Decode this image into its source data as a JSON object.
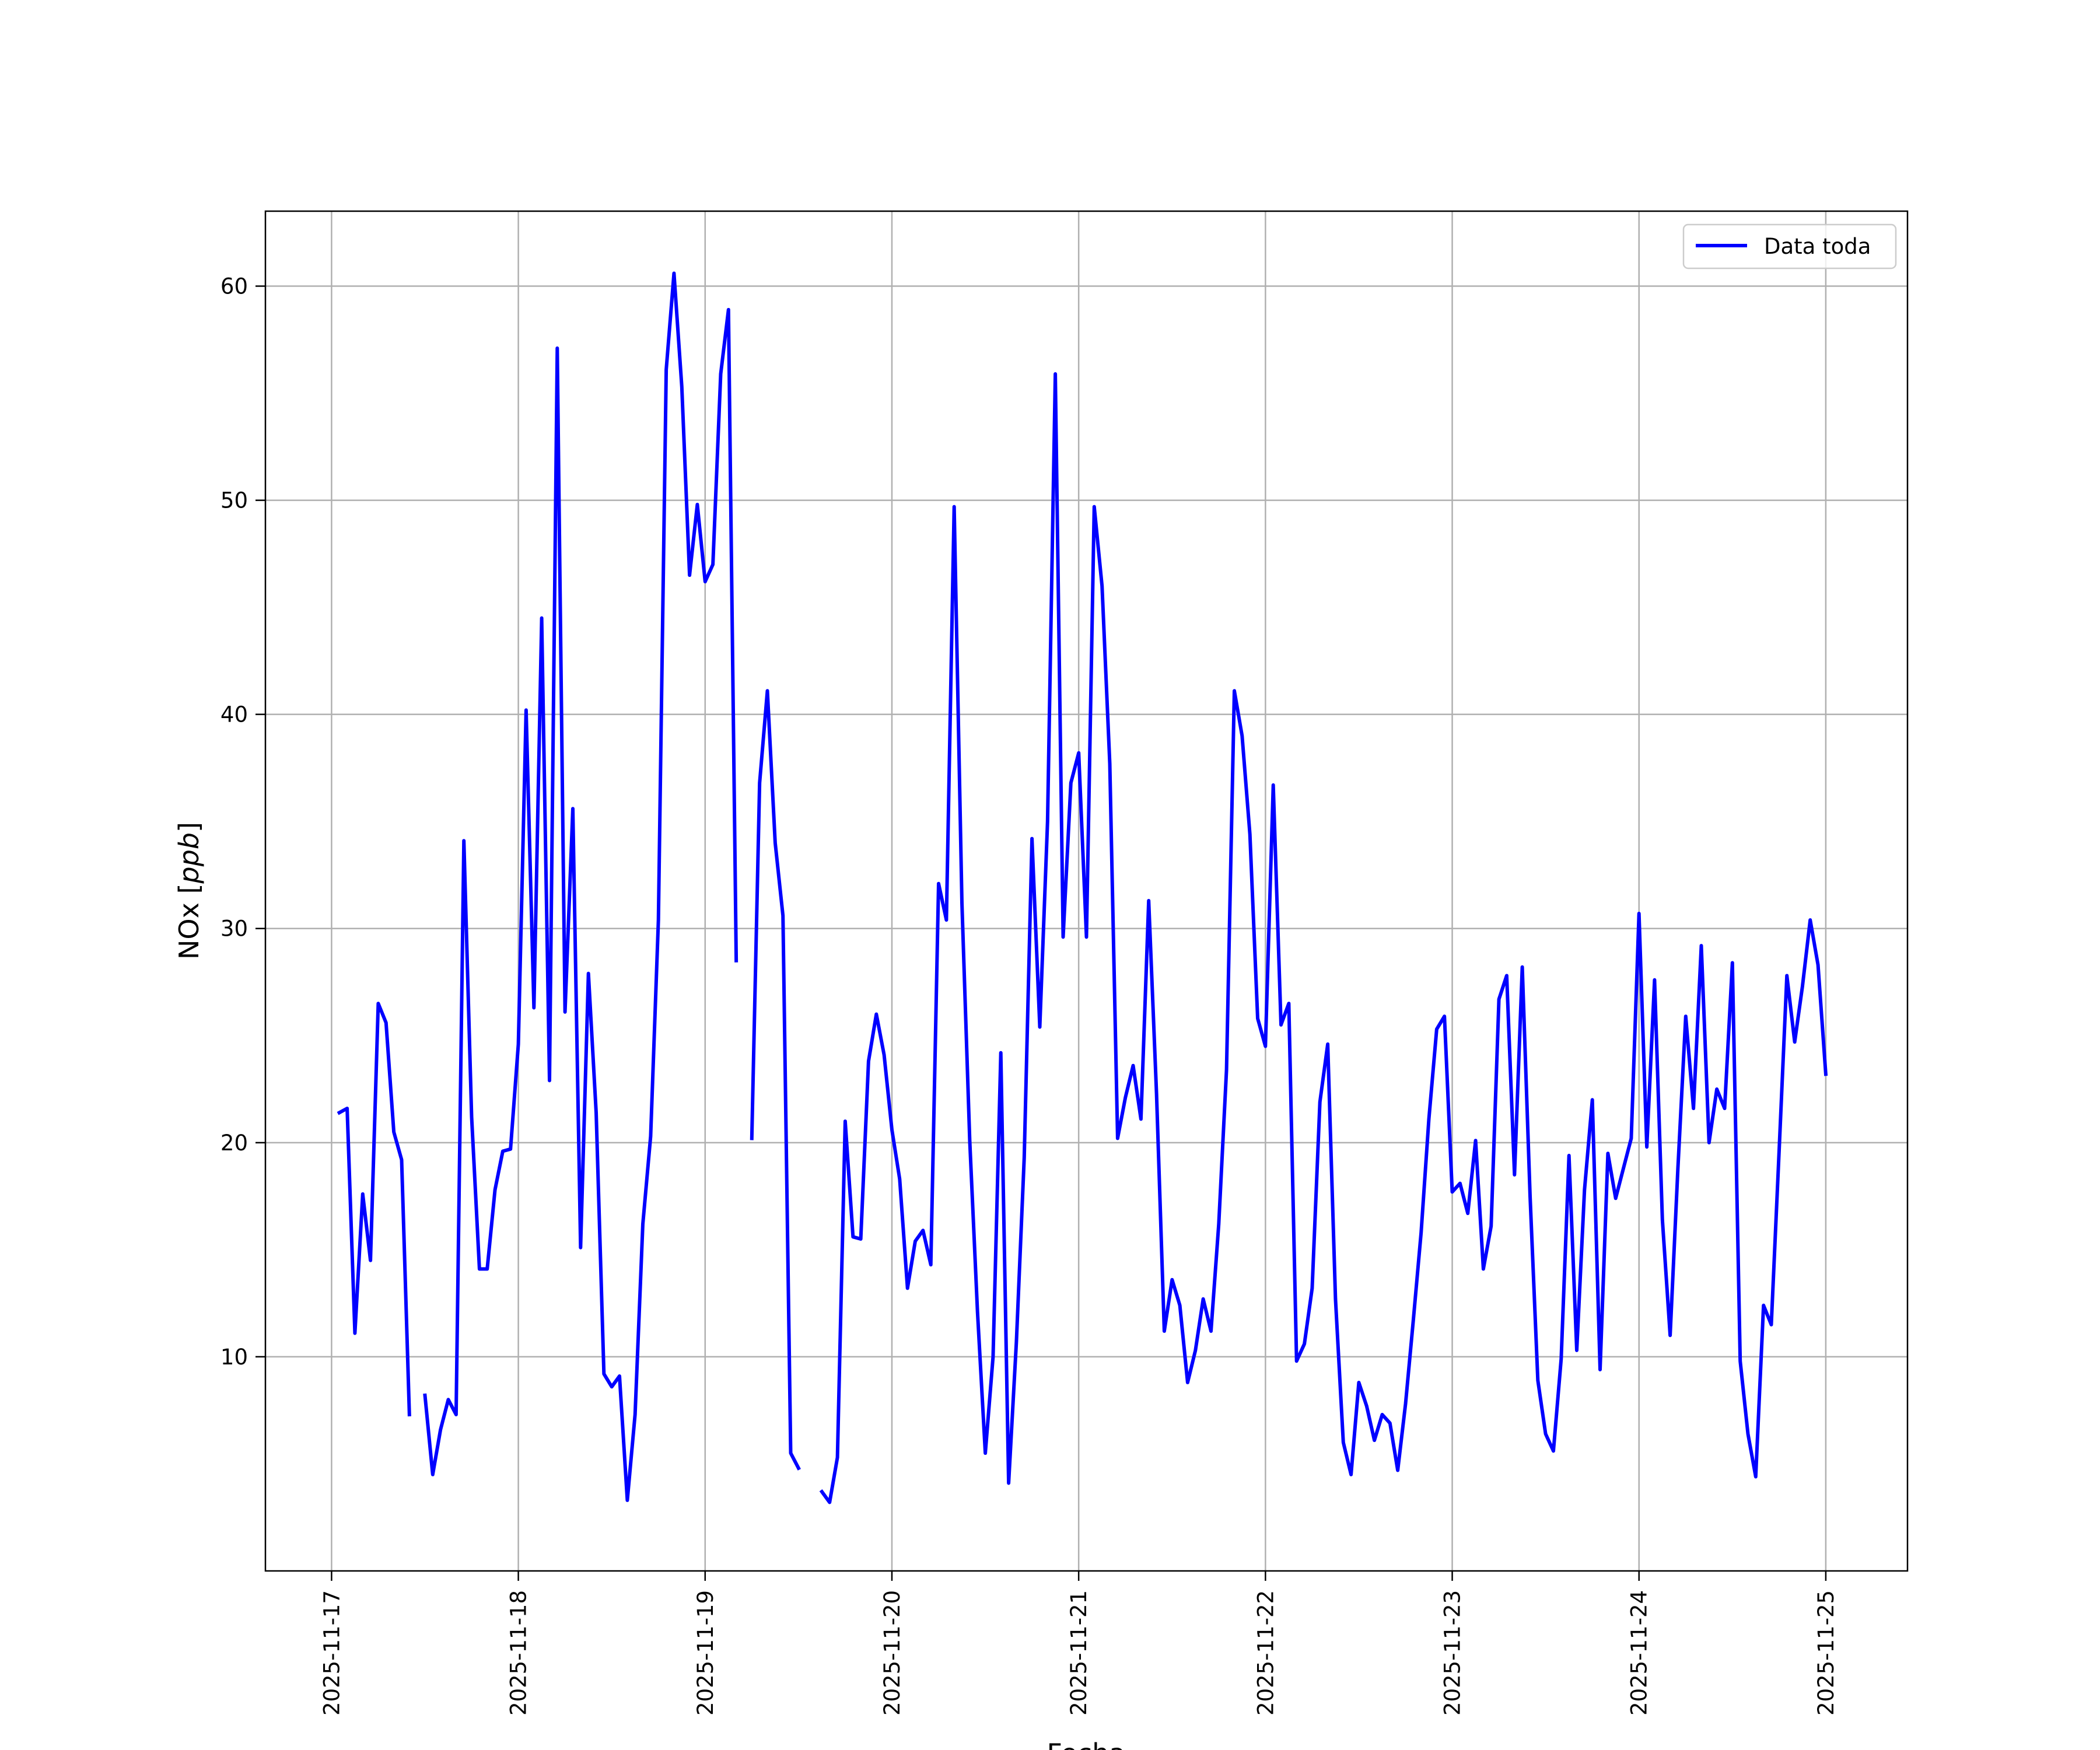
{
  "chart_data": {
    "type": "line",
    "xlabel": "Fecha",
    "ylabel": "NOx [ppb]",
    "ylabel_main": "NOx ",
    "ylabel_units": "ppb",
    "xlim": [
      "2025-11-16 15:30",
      "2025-11-25 10:30"
    ],
    "ylim": [
      0.0,
      63.5
    ],
    "grid": true,
    "legend": "top-right",
    "x_ticks": [
      "2025-11-17",
      "2025-11-18",
      "2025-11-19",
      "2025-11-20",
      "2025-11-21",
      "2025-11-22",
      "2025-11-23",
      "2025-11-24",
      "2025-11-25"
    ],
    "y_ticks": [
      10,
      20,
      30,
      40,
      50,
      60
    ],
    "series": [
      {
        "name": "Data toda",
        "color": "#0000ff",
        "segments": [
          [
            [
              "2025-11-17 01:00",
              21.4
            ],
            [
              "2025-11-17 02:00",
              21.6
            ],
            [
              "2025-11-17 03:00",
              11.1
            ],
            [
              "2025-11-17 04:00",
              17.6
            ],
            [
              "2025-11-17 05:00",
              14.5
            ],
            [
              "2025-11-17 06:00",
              26.5
            ],
            [
              "2025-11-17 07:00",
              25.6
            ],
            [
              "2025-11-17 08:00",
              20.5
            ],
            [
              "2025-11-17 09:00",
              19.2
            ],
            [
              "2025-11-17 10:00",
              7.3
            ]
          ],
          [
            [
              "2025-11-17 12:00",
              8.2
            ],
            [
              "2025-11-17 13:00",
              4.5
            ],
            [
              "2025-11-17 14:00",
              6.6
            ],
            [
              "2025-11-17 15:00",
              8.0
            ],
            [
              "2025-11-17 16:00",
              7.3
            ],
            [
              "2025-11-17 17:00",
              34.1
            ],
            [
              "2025-11-17 18:00",
              21.2
            ],
            [
              "2025-11-17 19:00",
              14.1
            ],
            [
              "2025-11-17 20:00",
              14.1
            ],
            [
              "2025-11-17 21:00",
              17.8
            ],
            [
              "2025-11-17 22:00",
              19.6
            ],
            [
              "2025-11-17 23:00",
              19.7
            ],
            [
              "2025-11-18 00:00",
              24.6
            ],
            [
              "2025-11-18 01:00",
              40.2
            ],
            [
              "2025-11-18 02:00",
              26.3
            ],
            [
              "2025-11-18 03:00",
              44.5
            ],
            [
              "2025-11-18 04:00",
              22.9
            ],
            [
              "2025-11-18 05:00",
              57.1
            ],
            [
              "2025-11-18 06:00",
              26.1
            ],
            [
              "2025-11-18 07:00",
              35.6
            ],
            [
              "2025-11-18 08:00",
              15.1
            ],
            [
              "2025-11-18 09:00",
              27.9
            ],
            [
              "2025-11-18 10:00",
              21.4
            ],
            [
              "2025-11-18 11:00",
              9.2
            ],
            [
              "2025-11-18 12:00",
              8.6
            ],
            [
              "2025-11-18 13:00",
              9.1
            ],
            [
              "2025-11-18 14:00",
              3.3
            ],
            [
              "2025-11-18 15:00",
              7.3
            ],
            [
              "2025-11-18 16:00",
              16.2
            ],
            [
              "2025-11-18 17:00",
              20.3
            ],
            [
              "2025-11-18 18:00",
              30.4
            ],
            [
              "2025-11-18 19:00",
              56.1
            ],
            [
              "2025-11-18 20:00",
              60.6
            ],
            [
              "2025-11-18 21:00",
              55.3
            ],
            [
              "2025-11-18 22:00",
              46.5
            ],
            [
              "2025-11-18 23:00",
              49.8
            ],
            [
              "2025-11-19 00:00",
              46.2
            ],
            [
              "2025-11-19 01:00",
              47.0
            ],
            [
              "2025-11-19 02:00",
              55.9
            ],
            [
              "2025-11-19 03:00",
              58.9
            ],
            [
              "2025-11-19 04:00",
              28.5
            ]
          ],
          [
            [
              "2025-11-19 06:00",
              20.2
            ],
            [
              "2025-11-19 07:00",
              36.8
            ],
            [
              "2025-11-19 08:00",
              41.1
            ],
            [
              "2025-11-19 09:00",
              34.0
            ],
            [
              "2025-11-19 10:00",
              30.6
            ],
            [
              "2025-11-19 11:00",
              5.5
            ],
            [
              "2025-11-19 12:00",
              4.8
            ]
          ],
          [
            [
              "2025-11-19 15:00",
              3.7
            ],
            [
              "2025-11-19 16:00",
              3.2
            ],
            [
              "2025-11-19 17:00",
              5.3
            ],
            [
              "2025-11-19 18:00",
              21.0
            ],
            [
              "2025-11-19 19:00",
              15.6
            ],
            [
              "2025-11-19 20:00",
              15.5
            ],
            [
              "2025-11-19 21:00",
              23.8
            ],
            [
              "2025-11-19 22:00",
              26.0
            ],
            [
              "2025-11-19 23:00",
              24.1
            ],
            [
              "2025-11-20 00:00",
              20.6
            ],
            [
              "2025-11-20 01:00",
              18.3
            ],
            [
              "2025-11-20 02:00",
              13.2
            ],
            [
              "2025-11-20 03:00",
              15.4
            ],
            [
              "2025-11-20 04:00",
              15.9
            ],
            [
              "2025-11-20 05:00",
              14.3
            ],
            [
              "2025-11-20 06:00",
              32.1
            ],
            [
              "2025-11-20 07:00",
              30.4
            ],
            [
              "2025-11-20 08:00",
              49.7
            ],
            [
              "2025-11-20 09:00",
              31.2
            ],
            [
              "2025-11-20 10:00",
              20.1
            ],
            [
              "2025-11-20 11:00",
              12.1
            ],
            [
              "2025-11-20 12:00",
              5.5
            ],
            [
              "2025-11-20 13:00",
              10.0
            ],
            [
              "2025-11-20 14:00",
              24.2
            ],
            [
              "2025-11-20 15:00",
              4.1
            ],
            [
              "2025-11-20 16:00",
              10.7
            ],
            [
              "2025-11-20 17:00",
              19.3
            ],
            [
              "2025-11-20 18:00",
              34.2
            ],
            [
              "2025-11-20 19:00",
              25.4
            ],
            [
              "2025-11-20 20:00",
              35.0
            ],
            [
              "2025-11-20 21:00",
              55.9
            ],
            [
              "2025-11-20 22:00",
              29.6
            ],
            [
              "2025-11-20 23:00",
              36.8
            ],
            [
              "2025-11-21 00:00",
              38.2
            ],
            [
              "2025-11-21 01:00",
              29.6
            ],
            [
              "2025-11-21 02:00",
              49.7
            ],
            [
              "2025-11-21 03:00",
              46.0
            ],
            [
              "2025-11-21 04:00",
              37.7
            ],
            [
              "2025-11-21 05:00",
              20.2
            ],
            [
              "2025-11-21 06:00",
              22.1
            ],
            [
              "2025-11-21 07:00",
              23.6
            ],
            [
              "2025-11-21 08:00",
              21.1
            ],
            [
              "2025-11-21 09:00",
              31.3
            ],
            [
              "2025-11-21 10:00",
              22.3
            ],
            [
              "2025-11-21 11:00",
              11.2
            ],
            [
              "2025-11-21 12:00",
              13.6
            ],
            [
              "2025-11-21 13:00",
              12.4
            ],
            [
              "2025-11-21 14:00",
              8.8
            ],
            [
              "2025-11-21 15:00",
              10.3
            ],
            [
              "2025-11-21 16:00",
              12.7
            ],
            [
              "2025-11-21 17:00",
              11.2
            ],
            [
              "2025-11-21 18:00",
              16.2
            ],
            [
              "2025-11-21 19:00",
              23.4
            ],
            [
              "2025-11-21 20:00",
              41.1
            ],
            [
              "2025-11-21 21:00",
              39.0
            ],
            [
              "2025-11-21 22:00",
              34.4
            ],
            [
              "2025-11-21 23:00",
              25.8
            ],
            [
              "2025-11-22 00:00",
              24.5
            ],
            [
              "2025-11-22 01:00",
              36.7
            ],
            [
              "2025-11-22 02:00",
              25.5
            ],
            [
              "2025-11-22 03:00",
              26.5
            ],
            [
              "2025-11-22 04:00",
              9.8
            ],
            [
              "2025-11-22 05:00",
              10.6
            ],
            [
              "2025-11-22 06:00",
              13.2
            ],
            [
              "2025-11-22 07:00",
              21.9
            ],
            [
              "2025-11-22 08:00",
              24.6
            ],
            [
              "2025-11-22 09:00",
              12.7
            ],
            [
              "2025-11-22 10:00",
              6.0
            ],
            [
              "2025-11-22 11:00",
              4.5
            ],
            [
              "2025-11-22 12:00",
              8.8
            ],
            [
              "2025-11-22 13:00",
              7.7
            ],
            [
              "2025-11-22 14:00",
              6.1
            ],
            [
              "2025-11-22 15:00",
              7.3
            ],
            [
              "2025-11-22 16:00",
              6.9
            ],
            [
              "2025-11-22 17:00",
              4.7
            ],
            [
              "2025-11-22 18:00",
              7.8
            ],
            [
              "2025-11-22 19:00",
              11.7
            ],
            [
              "2025-11-22 20:00",
              15.8
            ],
            [
              "2025-11-22 21:00",
              21.1
            ],
            [
              "2025-11-22 22:00",
              25.3
            ],
            [
              "2025-11-22 23:00",
              25.9
            ],
            [
              "2025-11-23 00:00",
              17.7
            ],
            [
              "2025-11-23 01:00",
              18.1
            ],
            [
              "2025-11-23 02:00",
              16.7
            ],
            [
              "2025-11-23 03:00",
              20.1
            ],
            [
              "2025-11-23 04:00",
              14.1
            ],
            [
              "2025-11-23 05:00",
              16.1
            ],
            [
              "2025-11-23 06:00",
              26.7
            ],
            [
              "2025-11-23 07:00",
              27.8
            ],
            [
              "2025-11-23 08:00",
              18.5
            ],
            [
              "2025-11-23 09:00",
              28.2
            ],
            [
              "2025-11-23 10:00",
              17.5
            ],
            [
              "2025-11-23 11:00",
              8.9
            ],
            [
              "2025-11-23 12:00",
              6.4
            ],
            [
              "2025-11-23 13:00",
              5.6
            ],
            [
              "2025-11-23 14:00",
              9.9
            ],
            [
              "2025-11-23 15:00",
              19.4
            ],
            [
              "2025-11-23 16:00",
              10.3
            ],
            [
              "2025-11-23 17:00",
              17.8
            ],
            [
              "2025-11-23 18:00",
              22.0
            ],
            [
              "2025-11-23 19:00",
              9.4
            ],
            [
              "2025-11-23 20:00",
              19.5
            ],
            [
              "2025-11-23 21:00",
              17.4
            ],
            [
              "2025-11-23 22:00",
              18.8
            ],
            [
              "2025-11-23 23:00",
              20.2
            ],
            [
              "2025-11-24 00:00",
              30.7
            ],
            [
              "2025-11-24 01:00",
              19.8
            ],
            [
              "2025-11-24 02:00",
              27.6
            ],
            [
              "2025-11-24 03:00",
              16.4
            ],
            [
              "2025-11-24 04:00",
              11.0
            ],
            [
              "2025-11-24 05:00",
              18.8
            ],
            [
              "2025-11-24 06:00",
              25.9
            ],
            [
              "2025-11-24 07:00",
              21.6
            ],
            [
              "2025-11-24 08:00",
              29.2
            ],
            [
              "2025-11-24 09:00",
              20.0
            ],
            [
              "2025-11-24 10:00",
              22.5
            ],
            [
              "2025-11-24 11:00",
              21.6
            ],
            [
              "2025-11-24 12:00",
              28.4
            ],
            [
              "2025-11-24 13:00",
              9.8
            ],
            [
              "2025-11-24 14:00",
              6.4
            ],
            [
              "2025-11-24 15:00",
              4.4
            ],
            [
              "2025-11-24 16:00",
              12.4
            ],
            [
              "2025-11-24 17:00",
              11.5
            ],
            [
              "2025-11-24 18:00",
              19.6
            ],
            [
              "2025-11-24 19:00",
              27.8
            ],
            [
              "2025-11-24 20:00",
              24.7
            ],
            [
              "2025-11-24 21:00",
              27.3
            ],
            [
              "2025-11-24 22:00",
              30.4
            ],
            [
              "2025-11-24 23:00",
              28.3
            ],
            [
              "2025-11-25 00:00",
              23.2
            ]
          ]
        ]
      }
    ]
  }
}
